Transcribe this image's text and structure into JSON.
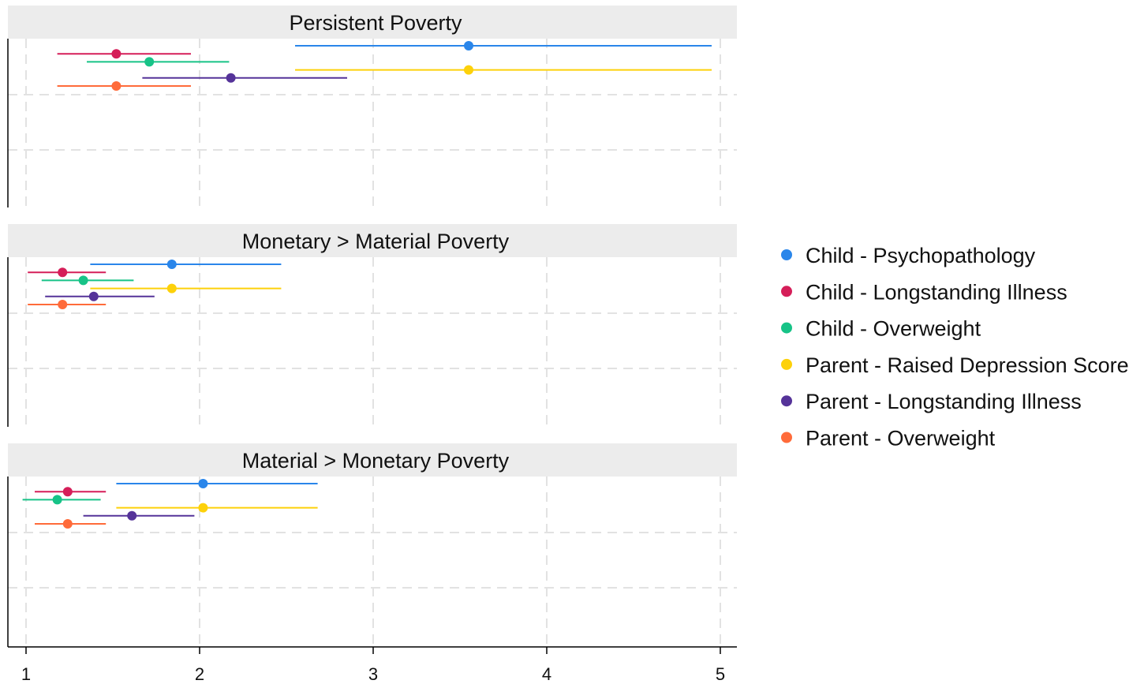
{
  "chart_data": {
    "type": "scatter",
    "subtype": "forest-plot-with-confidence-intervals",
    "xlim": [
      1,
      5
    ],
    "x_ticks": [
      "1",
      "2",
      "3",
      "4",
      "5"
    ],
    "grid": "dashed",
    "legend_placement": "right",
    "series": [
      {
        "name": "Child - Psychopathology",
        "color": "#2a86ea"
      },
      {
        "name": "Child - Longstanding Illness",
        "color": "#d51e59"
      },
      {
        "name": "Child - Overweight",
        "color": "#17c387"
      },
      {
        "name": "Parent - Raised Depression Score",
        "color": "#fdd10a"
      },
      {
        "name": "Parent - Longstanding Illness",
        "color": "#553399"
      },
      {
        "name": "Parent - Overweight",
        "color": "#ff6b3a"
      }
    ],
    "panels": [
      {
        "title": "Persistent Poverty",
        "points": [
          {
            "estimate": 3.55,
            "lower": 2.55,
            "upper": 4.95
          },
          {
            "estimate": 1.52,
            "lower": 1.18,
            "upper": 1.95
          },
          {
            "estimate": 1.71,
            "lower": 1.35,
            "upper": 2.17
          },
          {
            "estimate": 3.55,
            "lower": 2.55,
            "upper": 4.95
          },
          {
            "estimate": 2.18,
            "lower": 1.67,
            "upper": 2.85
          },
          {
            "estimate": 1.52,
            "lower": 1.18,
            "upper": 1.95
          }
        ]
      },
      {
        "title": "Monetary > Material Poverty",
        "points": [
          {
            "estimate": 1.84,
            "lower": 1.37,
            "upper": 2.47
          },
          {
            "estimate": 1.21,
            "lower": 1.01,
            "upper": 1.46
          },
          {
            "estimate": 1.33,
            "lower": 1.09,
            "upper": 1.62
          },
          {
            "estimate": 1.84,
            "lower": 1.37,
            "upper": 2.47
          },
          {
            "estimate": 1.39,
            "lower": 1.11,
            "upper": 1.74
          },
          {
            "estimate": 1.21,
            "lower": 1.01,
            "upper": 1.46
          }
        ]
      },
      {
        "title": "Material > Monetary Poverty",
        "points": [
          {
            "estimate": 2.02,
            "lower": 1.52,
            "upper": 2.68
          },
          {
            "estimate": 1.24,
            "lower": 1.05,
            "upper": 1.46
          },
          {
            "estimate": 1.18,
            "lower": 0.98,
            "upper": 1.43
          },
          {
            "estimate": 2.02,
            "lower": 1.52,
            "upper": 2.68
          },
          {
            "estimate": 1.61,
            "lower": 1.33,
            "upper": 1.97
          },
          {
            "estimate": 1.24,
            "lower": 1.05,
            "upper": 1.46
          }
        ]
      }
    ]
  }
}
